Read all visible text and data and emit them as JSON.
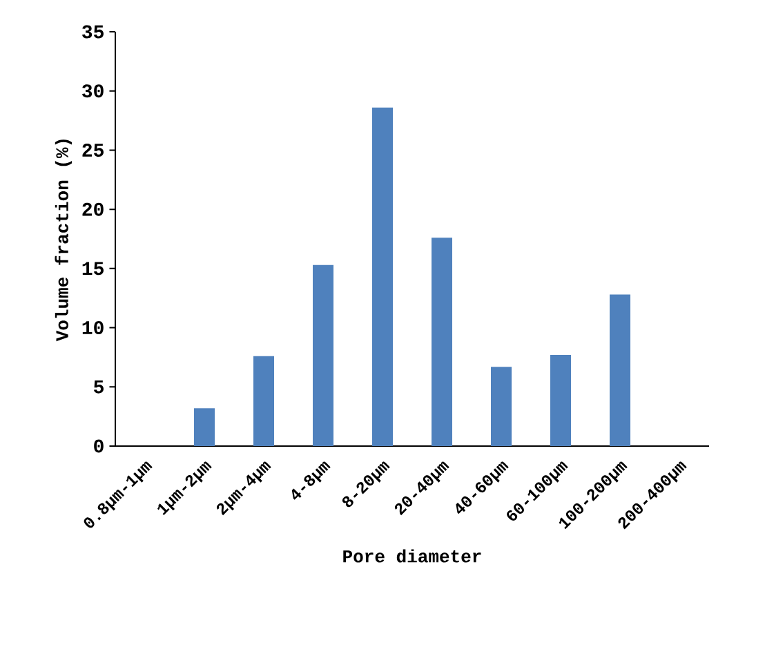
{
  "chart_data": {
    "type": "bar",
    "xlabel": "Pore diameter",
    "ylabel": "Volume fraction (%)",
    "categories": [
      "0.8µm-1µm",
      "1µm-2µm",
      "2µm-4µm",
      "4-8µm",
      "8-20µm",
      "20-40µm",
      "40-60µm",
      "60-100µm",
      "100-200µm",
      "200-400µm"
    ],
    "values": [
      0,
      3.2,
      7.6,
      15.3,
      28.6,
      17.6,
      6.7,
      7.7,
      12.8,
      null
    ],
    "color": "#4f81bd",
    "ylim": [
      0,
      35
    ],
    "yticks": [
      0,
      5,
      10,
      15,
      20,
      25,
      30,
      35
    ],
    "grid": false
  }
}
